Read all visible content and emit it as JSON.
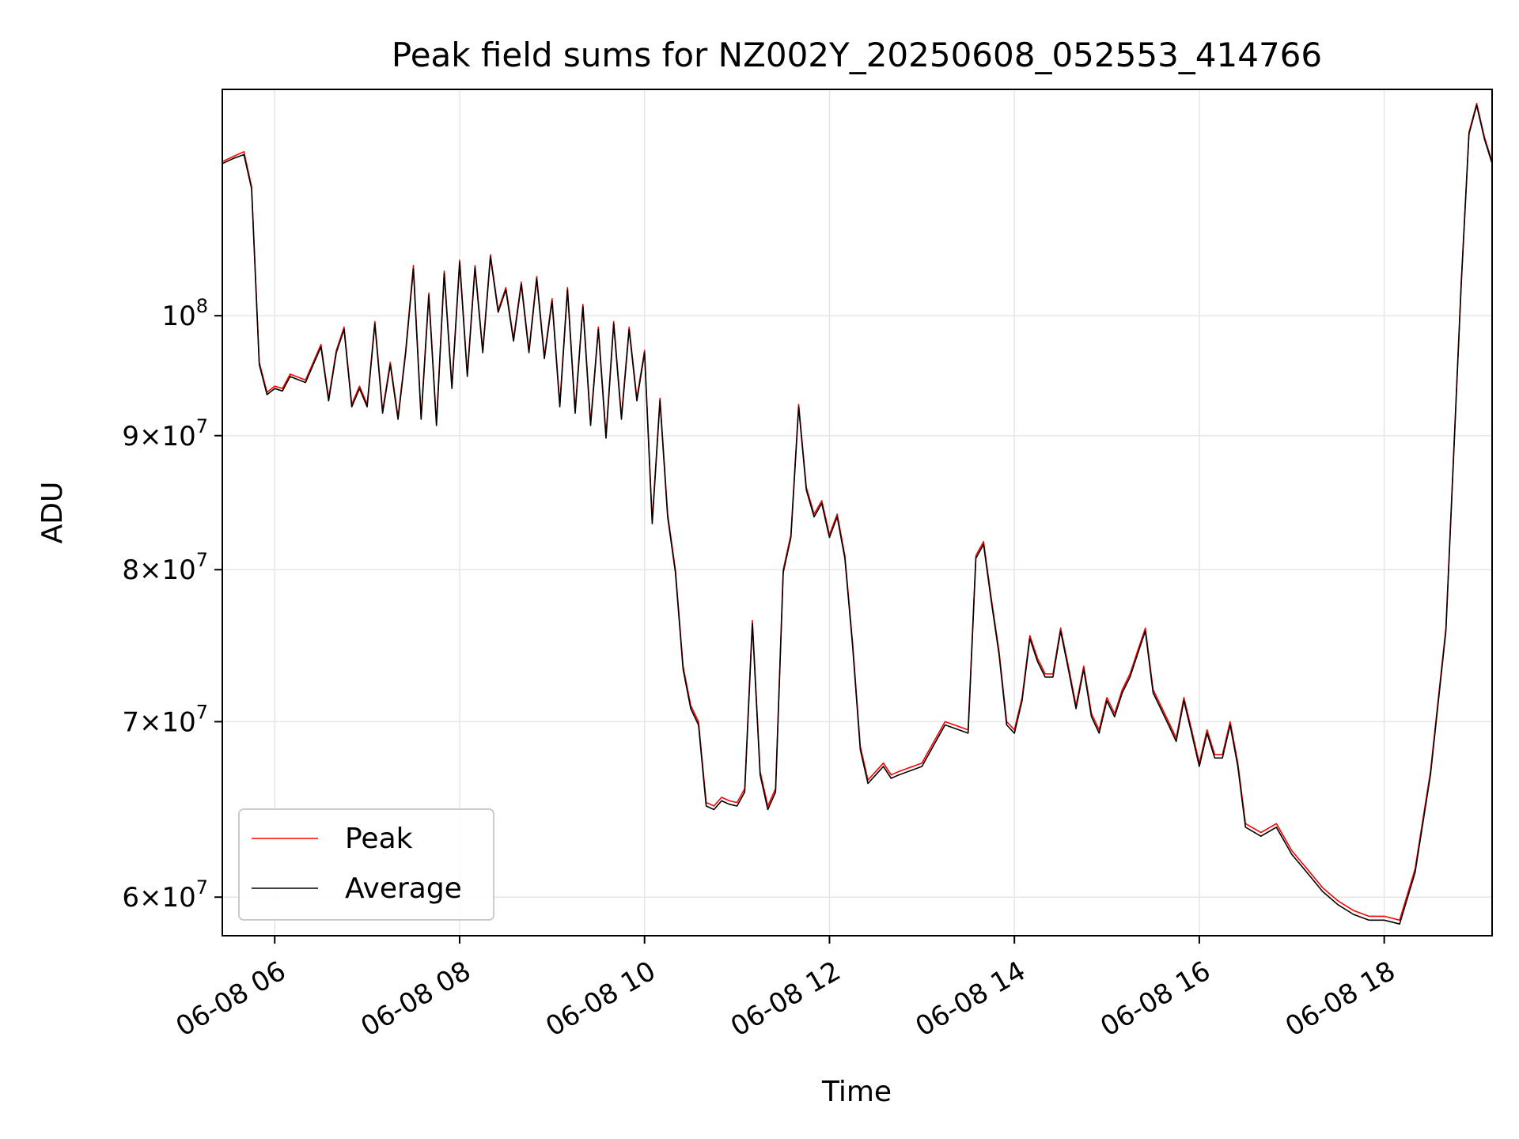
{
  "chart_data": {
    "type": "line",
    "title": "Peak field sums for NZ002Y_20250608_052553_414766",
    "xlabel": "Time",
    "ylabel": "ADU",
    "y_scale": "log",
    "ylim": [
      58000000,
      122000000
    ],
    "xlim": [
      "2025-06-08 05:26",
      "2025-06-08 19:10"
    ],
    "x_ticks": [
      "06-08 06",
      "06-08 08",
      "06-08 10",
      "06-08 12",
      "06-08 14",
      "06-08 16",
      "06-08 18"
    ],
    "y_ticks": [
      {
        "value": 60000000,
        "base": "6",
        "exp": "7"
      },
      {
        "value": 70000000,
        "base": "7",
        "exp": "7"
      },
      {
        "value": 80000000,
        "base": "8",
        "exp": "7"
      },
      {
        "value": 90000000,
        "base": "9",
        "exp": "7"
      },
      {
        "value": 100000000,
        "base": "10",
        "exp": "8"
      }
    ],
    "grid": true,
    "legend_position": "lower-left",
    "x": [
      "2025-06-08 05:26",
      "2025-06-08 05:33",
      "2025-06-08 05:40",
      "2025-06-08 05:45",
      "2025-06-08 05:50",
      "2025-06-08 05:55",
      "2025-06-08 06:00",
      "2025-06-08 06:05",
      "2025-06-08 06:10",
      "2025-06-08 06:20",
      "2025-06-08 06:30",
      "2025-06-08 06:35",
      "2025-06-08 06:40",
      "2025-06-08 06:45",
      "2025-06-08 06:50",
      "2025-06-08 06:55",
      "2025-06-08 07:00",
      "2025-06-08 07:05",
      "2025-06-08 07:10",
      "2025-06-08 07:15",
      "2025-06-08 07:20",
      "2025-06-08 07:25",
      "2025-06-08 07:30",
      "2025-06-08 07:35",
      "2025-06-08 07:40",
      "2025-06-08 07:45",
      "2025-06-08 07:50",
      "2025-06-08 07:55",
      "2025-06-08 08:00",
      "2025-06-08 08:05",
      "2025-06-08 08:10",
      "2025-06-08 08:15",
      "2025-06-08 08:20",
      "2025-06-08 08:25",
      "2025-06-08 08:30",
      "2025-06-08 08:35",
      "2025-06-08 08:40",
      "2025-06-08 08:45",
      "2025-06-08 08:50",
      "2025-06-08 08:55",
      "2025-06-08 09:00",
      "2025-06-08 09:05",
      "2025-06-08 09:10",
      "2025-06-08 09:15",
      "2025-06-08 09:20",
      "2025-06-08 09:25",
      "2025-06-08 09:30",
      "2025-06-08 09:35",
      "2025-06-08 09:40",
      "2025-06-08 09:45",
      "2025-06-08 09:50",
      "2025-06-08 09:55",
      "2025-06-08 10:00",
      "2025-06-08 10:05",
      "2025-06-08 10:10",
      "2025-06-08 10:15",
      "2025-06-08 10:20",
      "2025-06-08 10:25",
      "2025-06-08 10:30",
      "2025-06-08 10:35",
      "2025-06-08 10:40",
      "2025-06-08 10:45",
      "2025-06-08 10:50",
      "2025-06-08 10:55",
      "2025-06-08 11:00",
      "2025-06-08 11:05",
      "2025-06-08 11:10",
      "2025-06-08 11:15",
      "2025-06-08 11:20",
      "2025-06-08 11:25",
      "2025-06-08 11:30",
      "2025-06-08 11:35",
      "2025-06-08 11:40",
      "2025-06-08 11:45",
      "2025-06-08 11:50",
      "2025-06-08 11:55",
      "2025-06-08 12:00",
      "2025-06-08 12:05",
      "2025-06-08 12:10",
      "2025-06-08 12:15",
      "2025-06-08 12:20",
      "2025-06-08 12:25",
      "2025-06-08 12:30",
      "2025-06-08 12:35",
      "2025-06-08 12:40",
      "2025-06-08 12:45",
      "2025-06-08 13:00",
      "2025-06-08 13:15",
      "2025-06-08 13:30",
      "2025-06-08 13:35",
      "2025-06-08 13:40",
      "2025-06-08 13:45",
      "2025-06-08 13:50",
      "2025-06-08 13:55",
      "2025-06-08 14:00",
      "2025-06-08 14:05",
      "2025-06-08 14:10",
      "2025-06-08 14:15",
      "2025-06-08 14:20",
      "2025-06-08 14:25",
      "2025-06-08 14:30",
      "2025-06-08 14:35",
      "2025-06-08 14:40",
      "2025-06-08 14:45",
      "2025-06-08 14:50",
      "2025-06-08 14:55",
      "2025-06-08 15:00",
      "2025-06-08 15:05",
      "2025-06-08 15:10",
      "2025-06-08 15:15",
      "2025-06-08 15:20",
      "2025-06-08 15:25",
      "2025-06-08 15:30",
      "2025-06-08 15:35",
      "2025-06-08 15:40",
      "2025-06-08 15:45",
      "2025-06-08 15:50",
      "2025-06-08 15:55",
      "2025-06-08 16:00",
      "2025-06-08 16:05",
      "2025-06-08 16:10",
      "2025-06-08 16:15",
      "2025-06-08 16:20",
      "2025-06-08 16:25",
      "2025-06-08 16:30",
      "2025-06-08 16:40",
      "2025-06-08 16:50",
      "2025-06-08 17:00",
      "2025-06-08 17:10",
      "2025-06-08 17:20",
      "2025-06-08 17:30",
      "2025-06-08 17:40",
      "2025-06-08 17:50",
      "2025-06-08 18:00",
      "2025-06-08 18:10",
      "2025-06-08 18:20",
      "2025-06-08 18:30",
      "2025-06-08 18:40",
      "2025-06-08 18:50",
      "2025-06-08 18:55",
      "2025-06-08 19:00",
      "2025-06-08 19:05",
      "2025-06-08 19:10"
    ],
    "series": [
      {
        "name": "Peak",
        "color": "#ff0000",
        "values": [
          114500000,
          115000000,
          115500000,
          112000000,
          96000000,
          93500000,
          94000000,
          93800000,
          95000000,
          94500000,
          97500000,
          93000000,
          97000000,
          99000000,
          92500000,
          94000000,
          92500000,
          99500000,
          92000000,
          96000000,
          91500000,
          97000000,
          104500000,
          91500000,
          102000000,
          91000000,
          104000000,
          94000000,
          105000000,
          95000000,
          104500000,
          97000000,
          105500000,
          100500000,
          102500000,
          98000000,
          103000000,
          97000000,
          103500000,
          96500000,
          101500000,
          92500000,
          102500000,
          92000000,
          101000000,
          91000000,
          99000000,
          90000000,
          99500000,
          91500000,
          99000000,
          93000000,
          97000000,
          83500000,
          93000000,
          84000000,
          80000000,
          73500000,
          71000000,
          70000000,
          65200000,
          65000000,
          65500000,
          65300000,
          65200000,
          66000000,
          76500000,
          67000000,
          65000000,
          66000000,
          80000000,
          82500000,
          92500000,
          86000000,
          84000000,
          85000000,
          82500000,
          84000000,
          81000000,
          75000000,
          68500000,
          66500000,
          67000000,
          67500000,
          66800000,
          67000000,
          67500000,
          70000000,
          69500000,
          81000000,
          82000000,
          78000000,
          74500000,
          70000000,
          69500000,
          71500000,
          75500000,
          74000000,
          73000000,
          73000000,
          76000000,
          73500000,
          71000000,
          73500000,
          70500000,
          69500000,
          71500000,
          70500000,
          72000000,
          73000000,
          74500000,
          76000000,
          72000000,
          71000000,
          70000000,
          69000000,
          71500000,
          69500000,
          67500000,
          69500000,
          68000000,
          68000000,
          70000000,
          67500000,
          64000000,
          63500000,
          64000000,
          62500000,
          61500000,
          60500000,
          59800000,
          59300000,
          59000000,
          59000000,
          58800000,
          61500000,
          67000000,
          76000000,
          103000000,
          117500000,
          120500000,
          117000000,
          114500000
        ]
      },
      {
        "name": "Average",
        "color": "#000000",
        "values": [
          114300000,
          114800000,
          115200000,
          111800000,
          95800000,
          93300000,
          93800000,
          93600000,
          94800000,
          94300000,
          97300000,
          92800000,
          96800000,
          98800000,
          92300000,
          93800000,
          92300000,
          99300000,
          91800000,
          95800000,
          91300000,
          96800000,
          104200000,
          91300000,
          101800000,
          90800000,
          103800000,
          93800000,
          104800000,
          94800000,
          104300000,
          96800000,
          105300000,
          100300000,
          102300000,
          97800000,
          102800000,
          96800000,
          103300000,
          96300000,
          101300000,
          92300000,
          102300000,
          91800000,
          100800000,
          90800000,
          98800000,
          89800000,
          99300000,
          91300000,
          98800000,
          92800000,
          96800000,
          83300000,
          92800000,
          83800000,
          79800000,
          73300000,
          70800000,
          69800000,
          65000000,
          64800000,
          65300000,
          65100000,
          65000000,
          65800000,
          76300000,
          66800000,
          64800000,
          65800000,
          79800000,
          82300000,
          92300000,
          85800000,
          83800000,
          84800000,
          82300000,
          83800000,
          80800000,
          74800000,
          68300000,
          66300000,
          66800000,
          67300000,
          66600000,
          66800000,
          67300000,
          69800000,
          69300000,
          80800000,
          81800000,
          77800000,
          74300000,
          69800000,
          69300000,
          71300000,
          75300000,
          73800000,
          72800000,
          72800000,
          75800000,
          73300000,
          70800000,
          73300000,
          70300000,
          69300000,
          71300000,
          70300000,
          71800000,
          72800000,
          74300000,
          75800000,
          71800000,
          70800000,
          69800000,
          68800000,
          71300000,
          69300000,
          67300000,
          69300000,
          67800000,
          67800000,
          69800000,
          67300000,
          63800000,
          63300000,
          63800000,
          62300000,
          61300000,
          60300000,
          59600000,
          59100000,
          58800000,
          58800000,
          58600000,
          61300000,
          66800000,
          75800000,
          102800000,
          117300000,
          120300000,
          116800000,
          114300000
        ]
      }
    ]
  }
}
